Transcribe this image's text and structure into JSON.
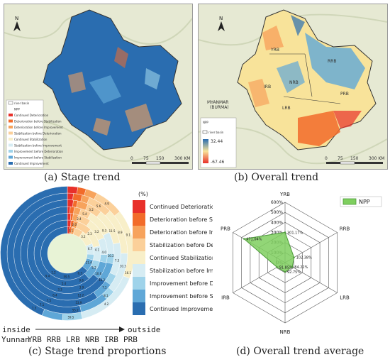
{
  "panel_a": {
    "north": "N",
    "legend_items": [
      "river basin",
      "NPP",
      "Continued Deterioration",
      "Deterioration before Stabilization",
      "Deterioration before Improvement",
      "Stabilization before Deterioration",
      "Continued Stabilization",
      "Stabilization before Improvement",
      "Improvement before Deterioration",
      "Improvement before Stabilization",
      "Continued Improvement"
    ],
    "scale": [
      "0",
      "75",
      "150",
      "300 KM"
    ],
    "caption": "(a)  Stage trend"
  },
  "panel_b": {
    "north": "N",
    "country_label": "MYANMAR\n(BURMA)",
    "country_line1": "MYANMAR",
    "country_line2": "(BURMA)",
    "region_labels": [
      "YRB",
      "RRB",
      "LRB",
      "NRB",
      "IRB",
      "PRB"
    ],
    "legend_title": "NPP",
    "legend_basin": "river basin",
    "legend_high": "32.44",
    "legend_low": "-67.46",
    "scale": [
      "0",
      "75",
      "150",
      "300 KM"
    ],
    "caption": "(b)  Overall trend"
  },
  "panel_c": {
    "legend_title": "(%)",
    "legend_items": [
      "Continued Deterioration",
      "Deterioration before Stabilization",
      "Deterioration before Improvement",
      "Stabilization before Deterioration",
      "Continued Stabilization",
      "Stabilization before Improvement",
      "Improvement before Deterioration",
      "Improvement before Stabilization",
      "Continued Improvement"
    ],
    "axis_inside": "inside",
    "axis_outside": "outside",
    "ring_labels": [
      "Yunnan",
      "YRB",
      "RRB",
      "LRB",
      "NRB",
      "IRB",
      "PRB"
    ],
    "caption": "(c)  Stage trend proportions"
  },
  "panel_d": {
    "caption": "(d)  Overall trend average",
    "legend": "NPP"
  },
  "colors": {
    "continued_deterioration": "#e8302a",
    "deterioration_before_stabilization": "#f26b2a",
    "deterioration_before_improvement": "#f7a35c",
    "stabilization_before_deterioration": "#fbd09a",
    "continued_stabilization": "#f8efc9",
    "stabilization_before_improvement": "#d6ecf3",
    "improvement_before_deterioration": "#9fd3ea",
    "improvement_before_stabilization": "#5fa7d7",
    "continued_improvement": "#2a6db0",
    "radar_fill": "#7fcf5f",
    "radar_stroke": "#4d9a3a"
  },
  "chart_data": [
    {
      "type": "pie",
      "subtype": "nested-donut",
      "rings": [
        "Yunnan",
        "YRB",
        "RRB",
        "LRB",
        "NRB",
        "IRB",
        "PRB"
      ],
      "categories": [
        "Continued Deterioration",
        "Deterioration before Stabilization",
        "Deterioration before Improvement",
        "Stabilization before Deterioration",
        "Continued Stabilization",
        "Stabilization before Improvement",
        "Improvement before Deterioration",
        "Improvement before Stabilization",
        "Continued Improvement"
      ],
      "series": [
        {
          "name": "Yunnan",
          "values": [
            1.5,
            1.2,
            2.0,
            5.2,
            9.1,
            6.6,
            3.4,
            7.3,
            63.7
          ]
        },
        {
          "name": "YRB",
          "values": [
            1.8,
            1.4,
            2.1,
            7.0,
            9.1,
            7.5,
            3.8,
            6.0,
            61.3
          ]
        },
        {
          "name": "RRB",
          "values": [
            1.4,
            1.0,
            2.0,
            5.3,
            8.9,
            6.9,
            3.3,
            7.0,
            64.2
          ]
        },
        {
          "name": "LRB",
          "values": [
            1.0,
            1.4,
            2.3,
            3.7,
            9.2,
            7.5,
            3.5,
            6.6,
            64.8
          ]
        },
        {
          "name": "NRB",
          "values": [
            1.8,
            1.3,
            3.2,
            4.5,
            11.0,
            10.0,
            3.2,
            5.5,
            59.5
          ]
        },
        {
          "name": "IRB",
          "values": [
            1.6,
            2.4,
            2.0,
            6.5,
            12.5,
            11.0,
            2.7,
            7.6,
            53.7
          ]
        },
        {
          "name": "PRB",
          "values": [
            2.5,
            2.0,
            2.8,
            7.0,
            16.8,
            15.3,
            4.8,
            5.0,
            43.8
          ]
        }
      ],
      "data_labels": [
        "3.1",
        "2.0",
        "2.4",
        "5.4",
        "3.2",
        "5.6",
        "4.9",
        "3.2",
        "2.3",
        "3.2",
        "9.3",
        "11.5",
        "8.9",
        "9.1",
        "6.7",
        "4.1",
        "4.0",
        "10.2",
        "7.5",
        "10.3",
        "16.1",
        "21.4",
        "5.2",
        "10.6",
        "13.2",
        "7.1",
        "8.1",
        "4.2",
        "6.3",
        "9.6",
        "3.9",
        "12.2",
        "53.9",
        "55.2",
        "59.5",
        "59.5",
        "5.4",
        "3.3",
        "6.4",
        "7.5",
        "7.1",
        "1.3",
        "1.2",
        "9.4"
      ]
    },
    {
      "type": "radar",
      "axes": [
        "YRB",
        "RRB",
        "LRB",
        "NRB",
        "IRB",
        "PRB"
      ],
      "r_ticks": [
        "0%",
        "100%",
        "200%",
        "300%",
        "400%",
        "500%",
        "600%"
      ],
      "rlim": [
        0,
        600
      ],
      "series": [
        {
          "name": "NPP",
          "values": [
            301.17,
            102.38,
            84.22,
            92.75,
            91.85,
            471.04
          ]
        }
      ],
      "value_labels": [
        "301.17%",
        "102.38%",
        "84.22%",
        "92.75%",
        "91.85%",
        "471.04%"
      ]
    }
  ]
}
